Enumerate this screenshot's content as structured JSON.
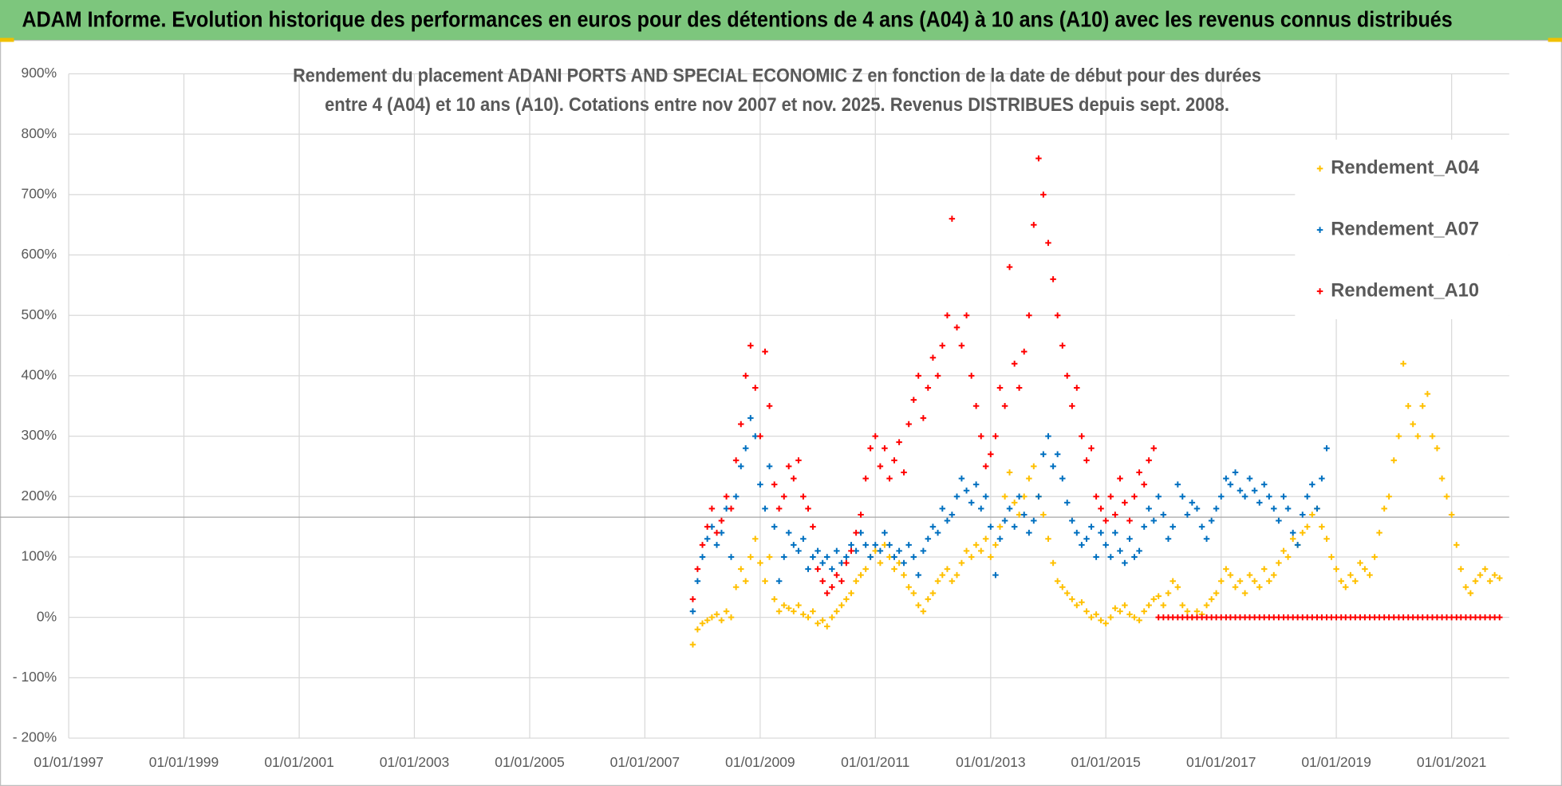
{
  "header": {
    "title": "ADAM Informe. Evolution historique des performances en euros pour des détentions de 4 ans (A04) à 10 ans (A10) avec les revenus connus distribués"
  },
  "chart_data": {
    "type": "scatter",
    "title": [
      "Rendement du placement ADANI PORTS AND SPECIAL ECONOMIC Z en fonction de la date de début pour des durées",
      "entre 4 (A04) et 10 ans (A10).  Cotations entre nov 2007 et nov. 2025. Revenus DISTRIBUES depuis sept. 2008."
    ],
    "xlim": [
      "01/01/1997",
      "01/01/2022"
    ],
    "xticks": [
      "01/01/1997",
      "01/01/1999",
      "01/01/2001",
      "01/01/2003",
      "01/01/2005",
      "01/01/2007",
      "01/01/2009",
      "01/01/2011",
      "01/01/2013",
      "01/01/2015",
      "01/01/2017",
      "01/01/2019",
      "01/01/2021"
    ],
    "ylim": [
      -200,
      900
    ],
    "yticks": [
      {
        "value": 900,
        "label": "900%"
      },
      {
        "value": 800,
        "label": "800%"
      },
      {
        "value": 700,
        "label": "700%"
      },
      {
        "value": 600,
        "label": "600%"
      },
      {
        "value": 500,
        "label": "500%"
      },
      {
        "value": 400,
        "label": "400%"
      },
      {
        "value": 300,
        "label": "300%"
      },
      {
        "value": 200,
        "label": "200%"
      },
      {
        "value": 100,
        "label": "100%"
      },
      {
        "value": 0,
        "label": "0%"
      },
      {
        "value": -100,
        "label": "- 100%"
      },
      {
        "value": -200,
        "label": "- 200%"
      }
    ],
    "grid": true,
    "legend": "top-right",
    "x": [
      "01/11/2007",
      "01/12/2007",
      "01/01/2008",
      "01/02/2008",
      "01/03/2008",
      "01/04/2008",
      "01/05/2008",
      "01/06/2008",
      "01/07/2008",
      "01/08/2008",
      "01/09/2008",
      "01/10/2008",
      "01/11/2008",
      "01/12/2008",
      "01/01/2009",
      "01/02/2009",
      "01/03/2009",
      "01/04/2009",
      "01/05/2009",
      "01/06/2009",
      "01/07/2009",
      "01/08/2009",
      "01/09/2009",
      "01/10/2009",
      "01/11/2009",
      "01/12/2009",
      "01/01/2010",
      "01/02/2010",
      "01/03/2010",
      "01/04/2010",
      "01/05/2010",
      "01/06/2010",
      "01/07/2010",
      "01/08/2010",
      "01/09/2010",
      "01/10/2010",
      "01/11/2010",
      "01/12/2010",
      "01/01/2011",
      "01/02/2011",
      "01/03/2011",
      "01/04/2011",
      "01/05/2011",
      "01/06/2011",
      "01/07/2011",
      "01/08/2011",
      "01/09/2011",
      "01/10/2011",
      "01/11/2011",
      "01/12/2011",
      "01/01/2012",
      "01/02/2012",
      "01/03/2012",
      "01/04/2012",
      "01/05/2012",
      "01/06/2012",
      "01/07/2012",
      "01/08/2012",
      "01/09/2012",
      "01/10/2012",
      "01/11/2012",
      "01/12/2012",
      "01/01/2013",
      "01/02/2013",
      "01/03/2013",
      "01/04/2013",
      "01/05/2013",
      "01/06/2013",
      "01/07/2013",
      "01/08/2013",
      "01/09/2013",
      "01/10/2013",
      "01/11/2013",
      "01/12/2013",
      "01/01/2014",
      "01/02/2014",
      "01/03/2014",
      "01/04/2014",
      "01/05/2014",
      "01/06/2014",
      "01/07/2014",
      "01/08/2014",
      "01/09/2014",
      "01/10/2014",
      "01/11/2014",
      "01/12/2014",
      "01/01/2015",
      "01/02/2015",
      "01/03/2015",
      "01/04/2015",
      "01/05/2015",
      "01/06/2015",
      "01/07/2015",
      "01/08/2015",
      "01/09/2015",
      "01/10/2015",
      "01/11/2015",
      "01/12/2015",
      "01/01/2016",
      "01/02/2016",
      "01/03/2016",
      "01/04/2016",
      "01/05/2016",
      "01/06/2016",
      "01/07/2016",
      "01/08/2016",
      "01/09/2016",
      "01/10/2016",
      "01/11/2016",
      "01/12/2016",
      "01/01/2017",
      "01/02/2017",
      "01/03/2017",
      "01/04/2017",
      "01/05/2017",
      "01/06/2017",
      "01/07/2017",
      "01/08/2017",
      "01/09/2017",
      "01/10/2017",
      "01/11/2017",
      "01/12/2017",
      "01/01/2018",
      "01/02/2018",
      "01/03/2018",
      "01/04/2018",
      "01/05/2018",
      "01/06/2018",
      "01/07/2018",
      "01/08/2018",
      "01/09/2018",
      "01/10/2018",
      "01/11/2018",
      "01/12/2018",
      "01/01/2019",
      "01/02/2019",
      "01/03/2019",
      "01/04/2019",
      "01/05/2019",
      "01/06/2019",
      "01/07/2019",
      "01/08/2019",
      "01/09/2019",
      "01/10/2019",
      "01/11/2019",
      "01/12/2019",
      "01/01/2020",
      "01/02/2020",
      "01/03/2020",
      "01/04/2020",
      "01/05/2020",
      "01/06/2020",
      "01/07/2020",
      "01/08/2020",
      "01/09/2020",
      "01/10/2020",
      "01/11/2020",
      "01/12/2020",
      "01/01/2021",
      "01/02/2021",
      "01/03/2021",
      "01/04/2021",
      "01/05/2021",
      "01/06/2021",
      "01/07/2021",
      "01/08/2021",
      "01/09/2021",
      "01/10/2021",
      "01/11/2021"
    ],
    "series": [
      {
        "name": "Rendement_A04",
        "color": "#FFC000",
        "values": [
          -45,
          -20,
          -10,
          -5,
          0,
          5,
          -5,
          10,
          0,
          50,
          80,
          60,
          100,
          130,
          90,
          60,
          100,
          30,
          10,
          20,
          15,
          10,
          20,
          5,
          0,
          10,
          -10,
          -5,
          -15,
          0,
          10,
          20,
          30,
          40,
          60,
          70,
          80,
          100,
          110,
          90,
          120,
          100,
          80,
          90,
          70,
          50,
          40,
          20,
          10,
          30,
          40,
          60,
          70,
          80,
          60,
          70,
          90,
          110,
          100,
          120,
          110,
          130,
          100,
          120,
          150,
          200,
          240,
          190,
          170,
          200,
          230,
          250,
          200,
          170,
          130,
          90,
          60,
          50,
          40,
          30,
          20,
          25,
          10,
          0,
          5,
          -5,
          -10,
          0,
          15,
          10,
          20,
          5,
          0,
          -5,
          10,
          20,
          30,
          35,
          20,
          40,
          60,
          50,
          20,
          10,
          0,
          10,
          5,
          20,
          30,
          40,
          60,
          80,
          70,
          50,
          60,
          40,
          70,
          60,
          50,
          80,
          60,
          70,
          90,
          110,
          100,
          130,
          120,
          140,
          150,
          170,
          180,
          150,
          130,
          100,
          80,
          60,
          50,
          70,
          60,
          90,
          80,
          70,
          100,
          140,
          180,
          200,
          260,
          300,
          420,
          350,
          320,
          300,
          350,
          370,
          300,
          280,
          230,
          200,
          170,
          120,
          80,
          50,
          40,
          60,
          70,
          80,
          60,
          70,
          65
        ]
      },
      {
        "name": "Rendement_A07",
        "color": "#0070C0",
        "values": [
          10,
          60,
          100,
          130,
          150,
          120,
          140,
          180,
          100,
          200,
          250,
          280,
          330,
          300,
          220,
          180,
          250,
          150,
          60,
          100,
          140,
          120,
          110,
          130,
          80,
          100,
          110,
          90,
          100,
          80,
          110,
          90,
          100,
          120,
          110,
          140,
          120,
          100,
          120,
          110,
          140,
          120,
          100,
          110,
          90,
          120,
          100,
          70,
          110,
          130,
          150,
          140,
          180,
          160,
          170,
          200,
          230,
          210,
          190,
          220,
          180,
          200,
          150,
          70,
          130,
          160,
          180,
          150,
          200,
          170,
          140,
          160,
          200,
          270,
          300,
          250,
          270,
          230,
          190,
          160,
          140,
          120,
          130,
          150,
          100,
          140,
          120,
          100,
          140,
          110,
          90,
          130,
          100,
          110,
          150,
          180,
          160,
          200,
          170,
          130,
          150,
          220,
          200,
          170,
          190,
          180,
          150,
          130,
          160,
          180,
          200,
          230,
          220,
          240,
          210,
          200,
          230,
          210,
          190,
          220,
          200,
          180,
          160,
          200,
          180,
          140,
          120,
          170,
          200,
          220,
          180,
          230,
          280,
          null,
          null,
          null,
          null,
          null,
          null,
          null,
          null,
          null,
          null,
          null,
          null,
          null,
          null,
          null,
          null,
          null,
          null,
          null,
          null,
          null,
          null,
          null,
          null,
          null,
          null,
          null,
          null,
          null,
          null,
          null,
          null,
          null,
          null,
          null,
          null
        ]
      },
      {
        "name": "Rendement_A10",
        "color": "#FF0000",
        "values": [
          30,
          80,
          120,
          150,
          180,
          140,
          160,
          200,
          180,
          260,
          320,
          400,
          450,
          380,
          300,
          440,
          350,
          220,
          180,
          200,
          250,
          230,
          260,
          200,
          180,
          150,
          80,
          60,
          40,
          50,
          70,
          60,
          90,
          110,
          140,
          170,
          230,
          280,
          300,
          250,
          280,
          230,
          260,
          290,
          240,
          320,
          360,
          400,
          330,
          380,
          430,
          400,
          450,
          500,
          660,
          480,
          450,
          500,
          400,
          350,
          300,
          250,
          270,
          300,
          380,
          350,
          580,
          420,
          380,
          440,
          500,
          650,
          760,
          700,
          620,
          560,
          500,
          450,
          400,
          350,
          380,
          300,
          260,
          280,
          200,
          180,
          160,
          200,
          170,
          230,
          190,
          160,
          200,
          240,
          220,
          260,
          280,
          0,
          0,
          0,
          0,
          0,
          0,
          0,
          0,
          0,
          0,
          0,
          0,
          0,
          0,
          0,
          0,
          0,
          0,
          0,
          0,
          0,
          0,
          0,
          0,
          0,
          0,
          0,
          0,
          0,
          0,
          0,
          0,
          0,
          0,
          0,
          0,
          0,
          0,
          0,
          0,
          0,
          0,
          0,
          0,
          0,
          0,
          0,
          0,
          0,
          0,
          0,
          0,
          0,
          0,
          0,
          0,
          0,
          0,
          0,
          0,
          0,
          0,
          0,
          0,
          0,
          0,
          0,
          0,
          0,
          0,
          0,
          0
        ]
      }
    ]
  }
}
